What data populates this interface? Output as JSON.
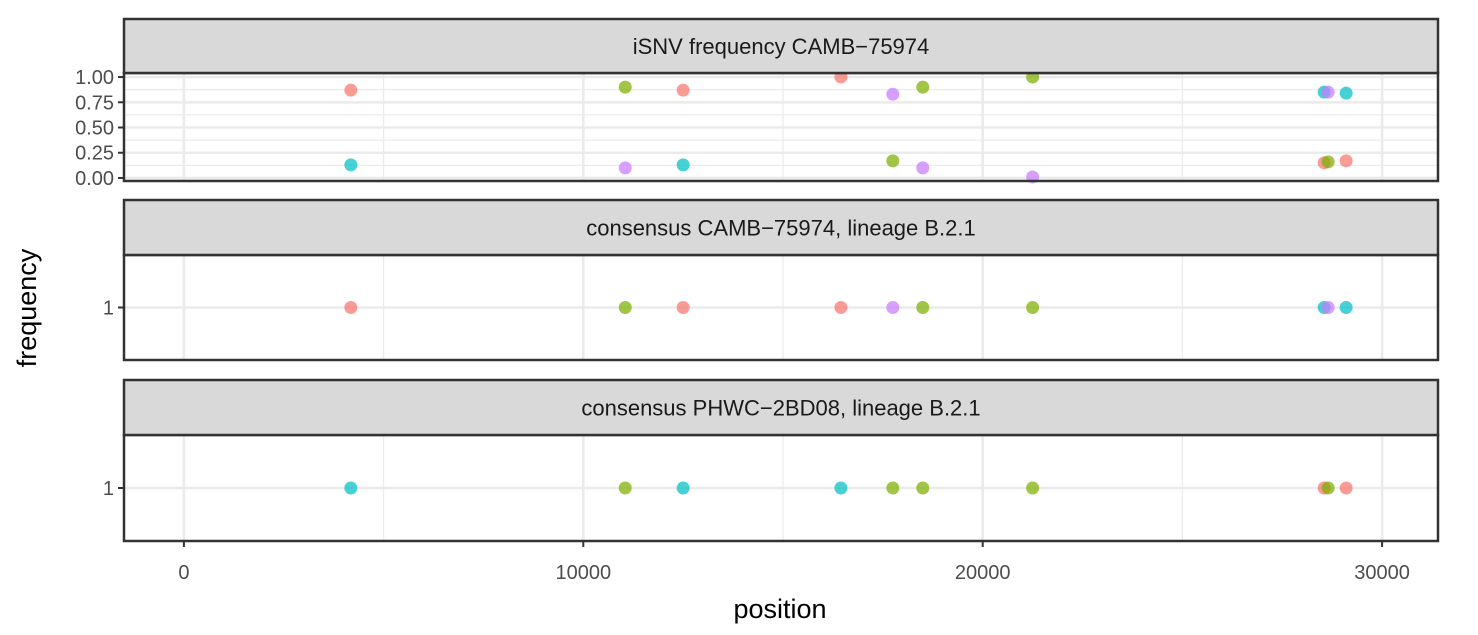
{
  "chart_data": {
    "type": "scatter",
    "xlabel": "position",
    "ylabel": "frequency",
    "xlim": [
      -1500,
      31400
    ],
    "x_ticks": [
      0,
      10000,
      20000,
      30000
    ],
    "x_tick_labels": [
      "0",
      "10000",
      "20000",
      "30000"
    ],
    "grid": true,
    "legend": "none",
    "colors": {
      "red": "#F8766D",
      "green": "#7CAE00",
      "teal": "#00BFC4",
      "purple": "#C77CFF"
    },
    "panels": [
      {
        "strip": "iSNV frequency CAMB−75974",
        "ylim": [
          -0.03,
          1.04
        ],
        "y_ticks": [
          0,
          0.25,
          0.5,
          0.75,
          1.0
        ],
        "y_tick_labels": [
          "0.00",
          "0.25",
          "0.50",
          "0.75",
          "1.00"
        ],
        "points": [
          {
            "x": 4180,
            "y": 0.87,
            "color": "red"
          },
          {
            "x": 4180,
            "y": 0.13,
            "color": "teal"
          },
          {
            "x": 11050,
            "y": 0.9,
            "color": "green"
          },
          {
            "x": 11050,
            "y": 0.1,
            "color": "purple"
          },
          {
            "x": 12500,
            "y": 0.87,
            "color": "red"
          },
          {
            "x": 12500,
            "y": 0.13,
            "color": "teal"
          },
          {
            "x": 16450,
            "y": 1.0,
            "color": "red"
          },
          {
            "x": 17750,
            "y": 0.83,
            "color": "purple"
          },
          {
            "x": 17750,
            "y": 0.17,
            "color": "green"
          },
          {
            "x": 18500,
            "y": 0.9,
            "color": "green"
          },
          {
            "x": 18500,
            "y": 0.1,
            "color": "purple"
          },
          {
            "x": 21250,
            "y": 1.0,
            "color": "green"
          },
          {
            "x": 21250,
            "y": 0.01,
            "color": "purple"
          },
          {
            "x": 28550,
            "y": 0.85,
            "color": "teal"
          },
          {
            "x": 28650,
            "y": 0.85,
            "color": "purple"
          },
          {
            "x": 28550,
            "y": 0.15,
            "color": "red"
          },
          {
            "x": 28650,
            "y": 0.16,
            "color": "green"
          },
          {
            "x": 29100,
            "y": 0.84,
            "color": "teal"
          },
          {
            "x": 29100,
            "y": 0.17,
            "color": "red"
          }
        ]
      },
      {
        "strip": "consensus CAMB−75974, lineage B.2.1",
        "ylim": [
          0.4,
          1.6
        ],
        "y_ticks": [
          1
        ],
        "y_tick_labels": [
          "1"
        ],
        "points": [
          {
            "x": 4180,
            "y": 1,
            "color": "red"
          },
          {
            "x": 11050,
            "y": 1,
            "color": "green"
          },
          {
            "x": 12500,
            "y": 1,
            "color": "red"
          },
          {
            "x": 16450,
            "y": 1,
            "color": "red"
          },
          {
            "x": 17750,
            "y": 1,
            "color": "purple"
          },
          {
            "x": 18500,
            "y": 1,
            "color": "green"
          },
          {
            "x": 21250,
            "y": 1,
            "color": "green"
          },
          {
            "x": 28550,
            "y": 1,
            "color": "teal"
          },
          {
            "x": 28650,
            "y": 1,
            "color": "purple"
          },
          {
            "x": 29100,
            "y": 1,
            "color": "teal"
          }
        ]
      },
      {
        "strip": "consensus PHWC−2BD08, lineage B.2.1",
        "ylim": [
          0.4,
          1.6
        ],
        "y_ticks": [
          1
        ],
        "y_tick_labels": [
          "1"
        ],
        "points": [
          {
            "x": 4180,
            "y": 1,
            "color": "teal"
          },
          {
            "x": 11050,
            "y": 1,
            "color": "green"
          },
          {
            "x": 12500,
            "y": 1,
            "color": "teal"
          },
          {
            "x": 16450,
            "y": 1,
            "color": "teal"
          },
          {
            "x": 17750,
            "y": 1,
            "color": "green"
          },
          {
            "x": 18500,
            "y": 1,
            "color": "green"
          },
          {
            "x": 21250,
            "y": 1,
            "color": "green"
          },
          {
            "x": 28550,
            "y": 1,
            "color": "red"
          },
          {
            "x": 28650,
            "y": 1,
            "color": "green"
          },
          {
            "x": 29100,
            "y": 1,
            "color": "red"
          }
        ]
      }
    ]
  }
}
